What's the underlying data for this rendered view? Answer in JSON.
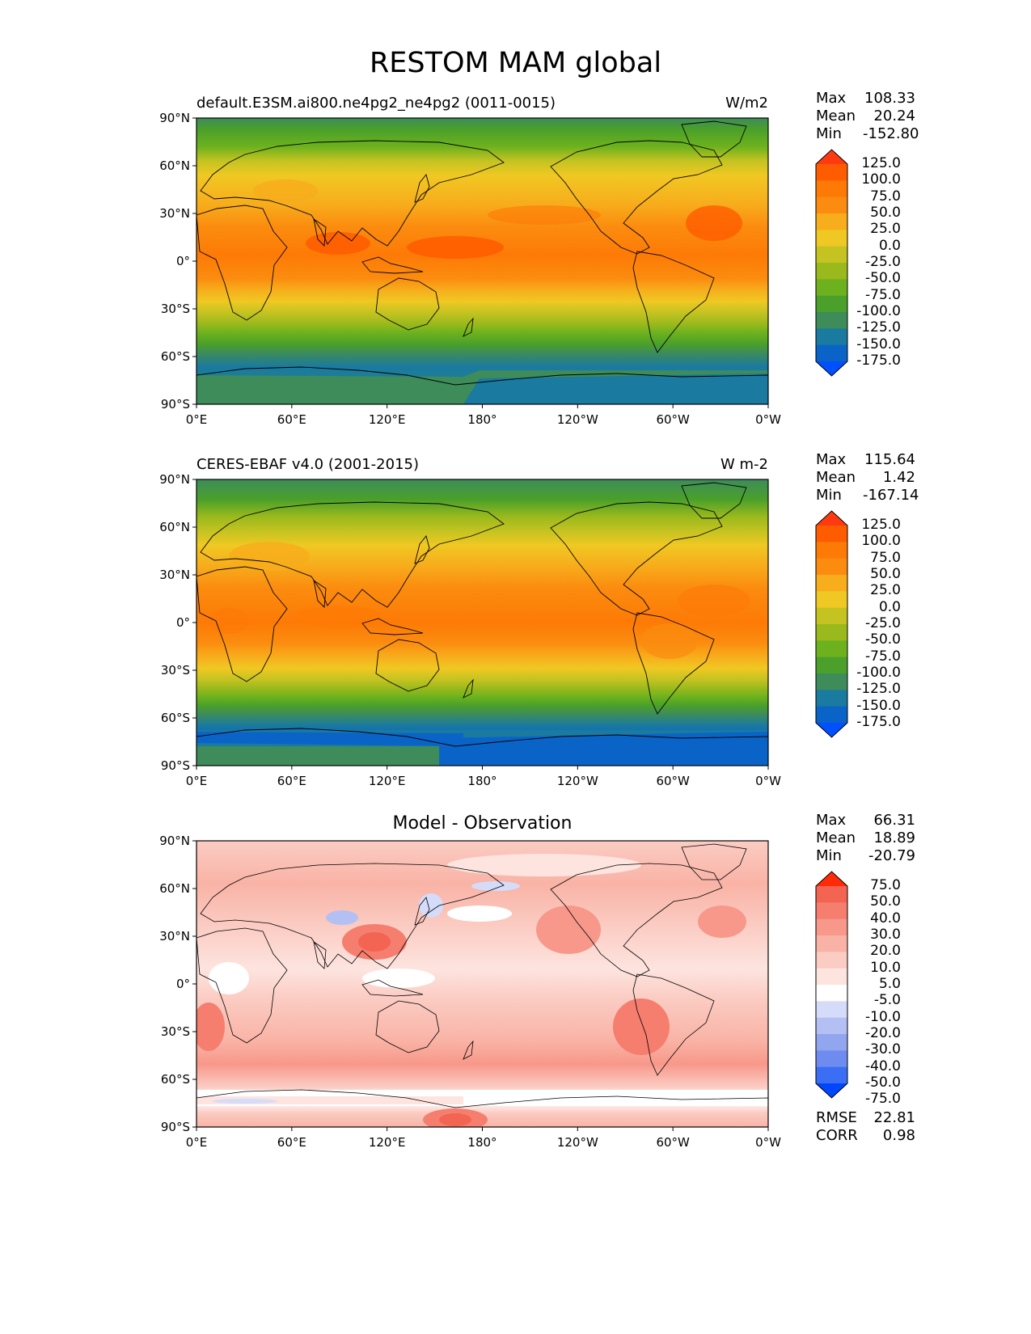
{
  "title": "RESTOM MAM global",
  "lat_ticks": [
    "90°N",
    "60°N",
    "30°N",
    "0°",
    "30°S",
    "60°S",
    "90°S"
  ],
  "lon_ticks": [
    "0°E",
    "60°E",
    "120°E",
    "180°",
    "120°W",
    "60°W",
    "0°W"
  ],
  "colors": {
    "test_levels": [
      "#0050ff",
      "#0a64c8",
      "#1a7aa0",
      "#3d8c5a",
      "#4aa02a",
      "#6db21e",
      "#9ab91c",
      "#c4c321",
      "#f0c823",
      "#f7ad1c",
      "#fb8c0f",
      "#fd7a06",
      "#ff5c00",
      "#ff3a10"
    ],
    "diff_levels": [
      "#0046ff",
      "#3a6ef5",
      "#6e8cf0",
      "#92a6f0",
      "#b4c0f4",
      "#d4dcfa",
      "#ffffff",
      "#fde4df",
      "#fbccc3",
      "#f9b3a6",
      "#f7988a",
      "#f57e6e",
      "#f36452",
      "#ff2a08"
    ]
  },
  "panels": [
    {
      "id": "test",
      "title_left": "default.E3SM.ai800.ne4pg2_ne4pg2 (0011-0015)",
      "title_center": "",
      "units": "W/m2",
      "stats": [
        {
          "label": "Max",
          "value": "108.33"
        },
        {
          "label": "Mean",
          "value": "20.24"
        },
        {
          "label": "Min",
          "value": "-152.80"
        }
      ],
      "colorbar_ticks": [
        "125.0",
        "100.0",
        "75.0",
        "50.0",
        "25.0",
        "0.0",
        "-25.0",
        "-50.0",
        "-75.0",
        "-100.0",
        "-125.0",
        "-150.0",
        "-175.0"
      ],
      "extra_stats": []
    },
    {
      "id": "ref",
      "title_left": "CERES-EBAF v4.0 (2001-2015)",
      "title_center": "",
      "units": "W m-2",
      "stats": [
        {
          "label": "Max",
          "value": "115.64"
        },
        {
          "label": "Mean",
          "value": "1.42"
        },
        {
          "label": "Min",
          "value": "-167.14"
        }
      ],
      "colorbar_ticks": [
        "125.0",
        "100.0",
        "75.0",
        "50.0",
        "25.0",
        "0.0",
        "-25.0",
        "-50.0",
        "-75.0",
        "-100.0",
        "-125.0",
        "-150.0",
        "-175.0"
      ],
      "extra_stats": []
    },
    {
      "id": "diff",
      "title_left": "",
      "title_center": "Model - Observation",
      "units": "",
      "stats": [
        {
          "label": "Max",
          "value": "66.31"
        },
        {
          "label": "Mean",
          "value": "18.89"
        },
        {
          "label": "Min",
          "value": "-20.79"
        }
      ],
      "colorbar_ticks": [
        "75.0",
        "50.0",
        "40.0",
        "30.0",
        "20.0",
        "10.0",
        "5.0",
        "-5.0",
        "-10.0",
        "-20.0",
        "-30.0",
        "-40.0",
        "-50.0",
        "-75.0"
      ],
      "extra_stats": [
        {
          "label": "RMSE",
          "value": "22.81"
        },
        {
          "label": "CORR",
          "value": "0.98"
        }
      ]
    }
  ]
}
